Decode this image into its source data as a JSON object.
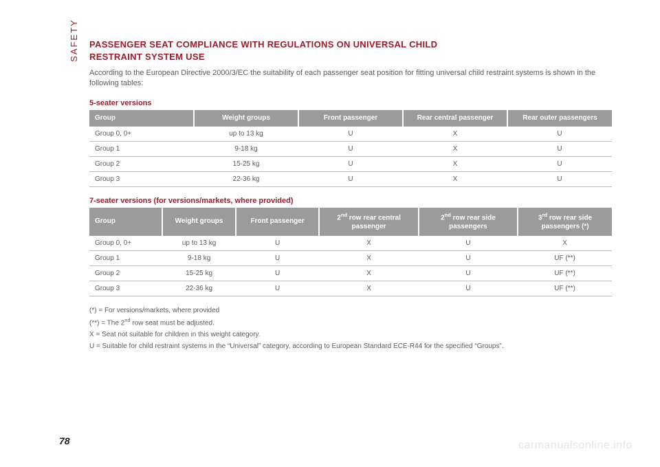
{
  "side_label": "SAFETY",
  "title_line1": "PASSENGER SEAT COMPLIANCE WITH REGULATIONS ON UNIVERSAL CHILD",
  "title_line2": "RESTRAINT SYSTEM USE",
  "intro": "According to the European Directive 2000/3/EC the suitability of each passenger seat position for fitting universal child restraint systems is shown in the following tables:",
  "table5": {
    "heading": "5-seater versions",
    "columns": [
      "Group",
      "Weight groups",
      "Front passenger",
      "Rear central passenger",
      "Rear outer passengers"
    ],
    "col_widths": [
      "20%",
      "20%",
      "20%",
      "20%",
      "20%"
    ],
    "rows": [
      [
        "Group 0, 0+",
        "up to 13 kg",
        "U",
        "X",
        "U"
      ],
      [
        "Group 1",
        "9-18 kg",
        "U",
        "X",
        "U"
      ],
      [
        "Group 2",
        "15-25 kg",
        "U",
        "X",
        "U"
      ],
      [
        "Group 3",
        "22-36 kg",
        "U",
        "X",
        "U"
      ]
    ]
  },
  "table7": {
    "heading": "7-seater versions (for versions/markets, where provided)",
    "columns_html": [
      "Group",
      "Weight groups",
      "Front passenger",
      "2<sup>nd</sup> row rear central passenger",
      "2<sup>nd</sup> row rear side passengers",
      "3<sup>rd</sup> row rear side passengers (*)"
    ],
    "col_widths": [
      "14%",
      "14%",
      "16%",
      "19%",
      "19%",
      "18%"
    ],
    "rows": [
      [
        "Group 0, 0+",
        "up to 13 kg",
        "U",
        "X",
        "U",
        "X"
      ],
      [
        "Group 1",
        "9-18 kg",
        "U",
        "X",
        "U",
        "UF (**)"
      ],
      [
        "Group 2",
        "15-25 kg",
        "U",
        "X",
        "U",
        "UF (**)"
      ],
      [
        "Group 3",
        "22-36 kg",
        "U",
        "X",
        "U",
        "UF (**)"
      ]
    ]
  },
  "notes": {
    "n1": "(*) = For versions/markets, where provided",
    "n2_html": "(**) = The 2<sup>nd</sup> row seat must be adjusted.",
    "n3": "X = Seat not suitable for children in this weight category.",
    "n4": "U = Suitable for child restraint systems in the “Universal” category, according to European Standard ECE-R44 for the specified “Groups”."
  },
  "page_number": "78",
  "watermark": "carmanualsonline.info",
  "colors": {
    "accent": "#991c2a",
    "header_bg": "#9b9b9b",
    "header_fg": "#ffffff",
    "text": "#5a5a5a",
    "rule": "#bdbdbd",
    "watermark": "#e5e5e5"
  }
}
